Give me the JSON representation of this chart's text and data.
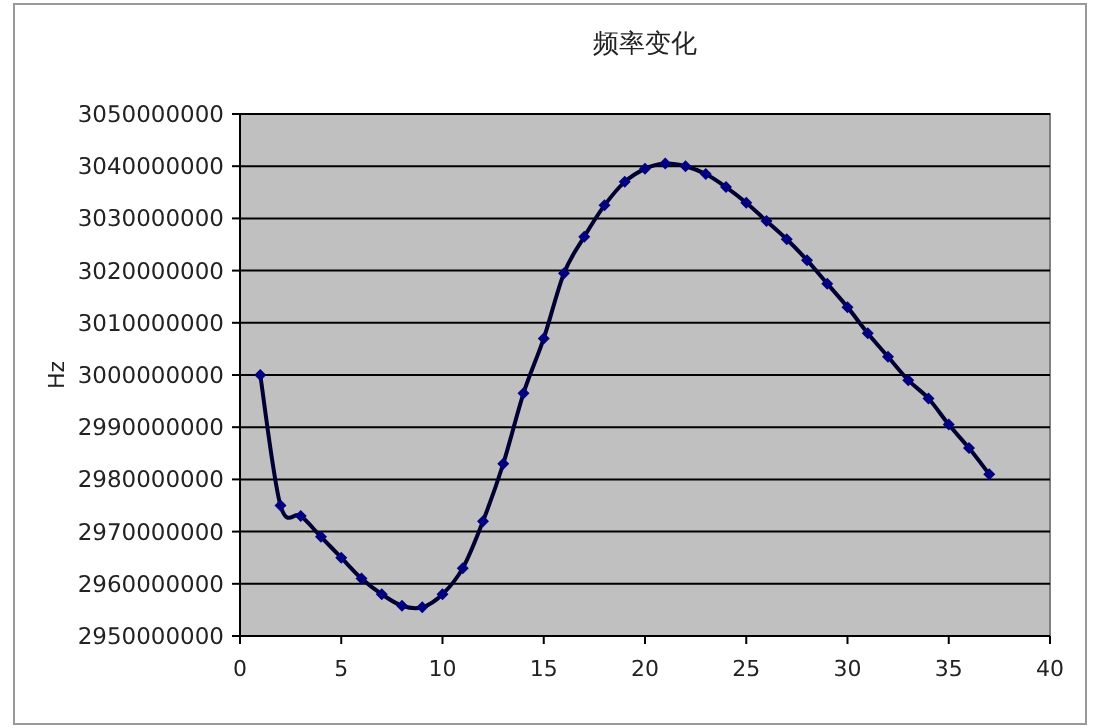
{
  "chart_data": {
    "type": "line",
    "title": "频率变化",
    "ylabel": "Hz",
    "x": [
      1,
      2,
      3,
      4,
      5,
      6,
      7,
      8,
      9,
      10,
      11,
      12,
      13,
      14,
      15,
      16,
      17,
      18,
      19,
      20,
      21,
      22,
      23,
      24,
      25,
      26,
      27,
      28,
      29,
      30,
      31,
      32,
      33,
      34,
      35,
      36,
      37
    ],
    "series": [
      {
        "color": "#000033",
        "values": [
          3000000000,
          2975000000,
          2973000000,
          2969000000,
          2965000000,
          2961000000,
          2958000000,
          2955800000,
          2955500000,
          2958000000,
          2963000000,
          2972000000,
          2983000000,
          2996500000,
          3007000000,
          3019500000,
          3026500000,
          3032500000,
          3037000000,
          3039500000,
          3040500000,
          3040000000,
          3038500000,
          3036000000,
          3033000000,
          3029500000,
          3026000000,
          3022000000,
          3017500000,
          3013000000,
          3008000000,
          3003500000,
          2999000000,
          2995500000,
          2990500000,
          2986000000,
          2981000000
        ]
      }
    ],
    "xlim": [
      0,
      40
    ],
    "xticks": [
      0,
      5,
      10,
      15,
      20,
      25,
      30,
      35,
      40
    ],
    "ylim": [
      2950000000,
      3050000000
    ],
    "yticks": [
      2950000000,
      2960000000,
      2970000000,
      2980000000,
      2990000000,
      3000000000,
      3010000000,
      3020000000,
      3030000000,
      3040000000,
      3050000000
    ],
    "grid": "y",
    "marker": "diamond",
    "line_style": "solid"
  }
}
